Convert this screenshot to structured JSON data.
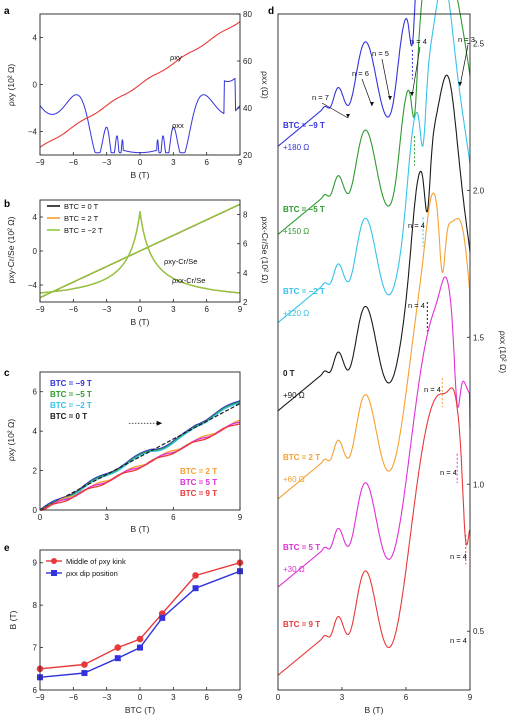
{
  "panels": {
    "a": {
      "label": "a",
      "ylabel_left": "ρxy (10² Ω)",
      "ylabel_right": "ρxx (Ω)",
      "xlabel": "B (T)",
      "series_labels": {
        "rxy": "ρxy",
        "rxx": "ρxx"
      }
    },
    "b": {
      "label": "b",
      "ylabel_left": "ρxy-Cr/Se (10² Ω)",
      "ylabel_right": "ρxx-Cr/Se (10² Ω)",
      "xlabel": "B (T)",
      "legend": [
        "BTC = 0 T",
        "BTC = 2 T",
        "BTC = −2 T"
      ],
      "curve_labels": [
        "ρxy-Cr/Se",
        "ρxx-Cr/Se"
      ]
    },
    "c": {
      "label": "c",
      "ylabel": "ρxy (10² Ω)",
      "xlabel": "B (T)",
      "legend_top": [
        "BTC = −9 T",
        "BTC = −5 T",
        "BTC = −2 T",
        "BTC = 0 T"
      ],
      "legend_bottom": [
        "BTC = 2 T",
        "BTC = 5 T",
        "BTC = 9 T"
      ]
    },
    "d": {
      "label": "d",
      "ylabel": "ρxx (10² Ω)",
      "xlabel": "B (T)",
      "n_labels": [
        "n = 7",
        "n = 6",
        "n = 5",
        "n = 4",
        "n = 3"
      ],
      "curve_labels": [
        {
          "btc": "BTC = −9 T",
          "offset": "+180 Ω"
        },
        {
          "btc": "BTC = −5 T",
          "offset": "+150 Ω"
        },
        {
          "btc": "BTC = −2 T",
          "offset": "+120 Ω"
        },
        {
          "btc": "0 T",
          "offset": "+90 Ω"
        },
        {
          "btc": "BTC = 2 T",
          "offset": "+60 Ω"
        },
        {
          "btc": "BTC = 5 T",
          "offset": "+30 Ω"
        },
        {
          "btc": "BTC = 9 T",
          "offset": ""
        }
      ],
      "n4_label": "n = 4"
    },
    "e": {
      "label": "e",
      "ylabel": "B (T)",
      "xlabel": "BTC (T)",
      "legend": [
        "Middle of ρxy kink",
        "ρxx dip position"
      ]
    }
  },
  "colors": {
    "red": "#e8393a",
    "blue": "#3333dd",
    "green": "#2e9a2e",
    "cyan": "#35c3e8",
    "black": "#1a1a1a",
    "orange": "#f5a030",
    "magenta": "#e030d8",
    "lightgreen": "#8ccc3c",
    "teal": "#2a7a7a"
  },
  "chart_data": [
    {
      "type": "line",
      "panel": "a",
      "xlim": [
        -9,
        9
      ],
      "ylim_left": [
        -6,
        6
      ],
      "ylim_right": [
        20,
        80
      ],
      "xticks": [
        -9,
        -6,
        -3,
        0,
        3,
        6,
        9
      ],
      "yticks_left": [
        -4,
        0,
        4
      ],
      "yticks_right": [
        20,
        40,
        60,
        80
      ],
      "series": [
        {
          "name": "ρxy",
          "axis": "left",
          "x": [
            -9,
            -7,
            -5,
            -3,
            -1,
            0,
            1,
            3,
            5,
            7,
            9
          ],
          "y": [
            -5.2,
            -4.2,
            -3.0,
            -1.9,
            -0.6,
            0,
            0.6,
            1.9,
            3.0,
            4.2,
            5.4
          ]
        },
        {
          "name": "ρxx",
          "axis": "right",
          "x": [
            -9,
            -8.2,
            -7.5,
            -7,
            -6.3,
            -5.5,
            -5,
            -4.5,
            -4,
            -3.5,
            -3,
            -2.5,
            -2,
            -1,
            0,
            1,
            2,
            2.5,
            3,
            3.5,
            4,
            4.5,
            5,
            5.5,
            6.3,
            7,
            7.5,
            8.2,
            9
          ],
          "y": [
            30,
            43,
            28,
            48,
            32,
            56,
            38,
            45,
            27,
            33,
            26,
            28,
            24,
            22,
            21,
            22,
            24,
            28,
            26,
            33,
            27,
            45,
            38,
            56,
            32,
            48,
            28,
            73,
            30
          ]
        }
      ]
    },
    {
      "type": "line",
      "panel": "b",
      "xlim": [
        -9,
        9
      ],
      "ylim_left": [
        -6,
        6
      ],
      "ylim_right": [
        2,
        9
      ],
      "xticks": [
        -9,
        -6,
        -3,
        0,
        3,
        6,
        9
      ],
      "yticks_left": [
        -4,
        0,
        4
      ],
      "yticks_right": [
        2,
        4,
        6,
        8
      ],
      "series": [
        {
          "name": "ρxy-Cr/Se",
          "x": [
            -9,
            9
          ],
          "y": [
            -5.5,
            5.5
          ]
        },
        {
          "name": "ρxx-Cr/Se",
          "x": [
            -9,
            -6,
            -3,
            -1.5,
            -0.5,
            0,
            0.5,
            1.5,
            3,
            6,
            9
          ],
          "y": [
            2.1,
            2.9,
            3.8,
            4.8,
            6.5,
            8.2,
            6.5,
            4.8,
            3.8,
            2.9,
            2.1
          ]
        }
      ]
    },
    {
      "type": "line",
      "panel": "c",
      "xlim": [
        0,
        9
      ],
      "ylim": [
        0,
        7
      ],
      "xticks": [
        0,
        3,
        6,
        9
      ],
      "yticks": [
        0,
        2,
        4,
        6
      ],
      "series": [
        {
          "name": "BTC = −9 T",
          "x": [
            0,
            3,
            5.5,
            7,
            9
          ],
          "y": [
            0,
            1.9,
            3.8,
            4.7,
            6.0
          ]
        },
        {
          "name": "BTC = −5 T",
          "x": [
            0,
            3,
            5.5,
            7,
            9
          ],
          "y": [
            0,
            1.85,
            3.7,
            4.55,
            5.9
          ]
        },
        {
          "name": "BTC = −2 T",
          "x": [
            0,
            3,
            5.5,
            7,
            9
          ],
          "y": [
            0,
            1.8,
            3.6,
            4.45,
            5.8
          ]
        },
        {
          "name": "BTC = 0 T",
          "x": [
            0,
            3,
            6,
            9
          ],
          "y": [
            0,
            1.75,
            3.5,
            5.4
          ]
        },
        {
          "name": "BTC = 2 T",
          "x": [
            0,
            3,
            6,
            9
          ],
          "y": [
            0,
            1.6,
            3.1,
            4.6
          ]
        },
        {
          "name": "BTC = 5 T",
          "x": [
            0,
            3,
            6,
            9
          ],
          "y": [
            0,
            1.55,
            3.0,
            4.5
          ]
        },
        {
          "name": "BTC = 9 T",
          "x": [
            0,
            3,
            6,
            9
          ],
          "y": [
            0,
            1.5,
            2.95,
            4.4
          ]
        }
      ]
    },
    {
      "type": "line",
      "panel": "d",
      "xlim": [
        0,
        9
      ],
      "ylim": [
        0.3,
        2.6
      ],
      "xticks": [
        0,
        3,
        6,
        9
      ],
      "yticks": [
        0.5,
        1.0,
        1.5,
        2.0,
        2.5
      ],
      "n4_dip_positions_T": [
        6.3,
        6.4,
        6.8,
        7.0,
        7.7,
        8.4,
        8.8
      ]
    },
    {
      "type": "line",
      "panel": "e",
      "xlim": [
        -9,
        9
      ],
      "ylim": [
        6,
        9.3
      ],
      "xticks": [
        -9,
        -6,
        -3,
        0,
        3,
        6,
        9
      ],
      "yticks": [
        6,
        7,
        8,
        9
      ],
      "categories": [
        -9,
        -5,
        -2,
        0,
        2,
        5,
        9
      ],
      "series": [
        {
          "name": "Middle of ρxy kink",
          "values": [
            6.5,
            6.6,
            7.0,
            7.2,
            7.8,
            8.7,
            9.0
          ]
        },
        {
          "name": "ρxx dip position",
          "values": [
            6.3,
            6.4,
            6.75,
            7.0,
            7.7,
            8.4,
            8.8
          ]
        }
      ]
    }
  ]
}
